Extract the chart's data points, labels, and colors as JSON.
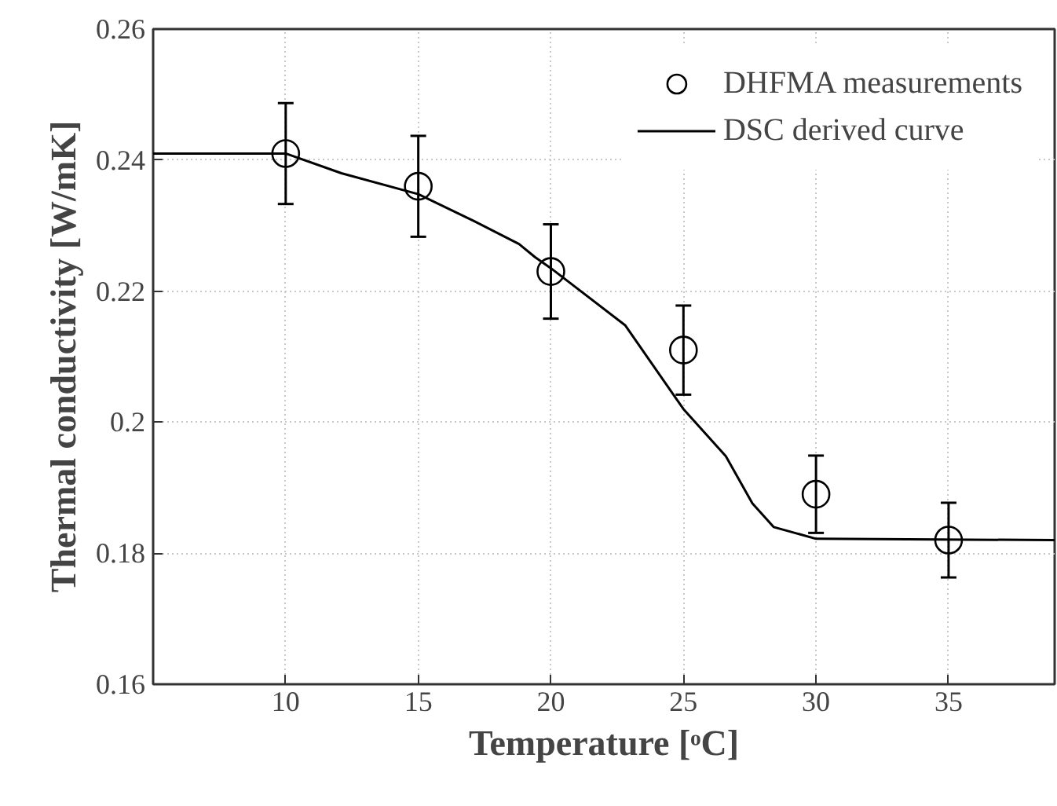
{
  "chart_data": {
    "type": "scatter",
    "xlabel": "Temperature [ᵒC]",
    "ylabel": "Thermal conductivity [W/mK]",
    "xlim": [
      5,
      39
    ],
    "ylim": [
      0.16,
      0.26
    ],
    "xticks": [
      10,
      15,
      20,
      25,
      30,
      35
    ],
    "yticks": [
      0.16,
      0.18,
      0.2,
      0.22,
      0.24,
      0.26
    ],
    "grid": true,
    "legend": "top right",
    "series": [
      {
        "name": "DHFMA measurements",
        "marker": "circle",
        "color": "#000000",
        "x": [
          10,
          15,
          20,
          25,
          30,
          35
        ],
        "values": [
          0.241,
          0.236,
          0.223,
          0.211,
          0.189,
          0.182
        ],
        "errors": [
          0.0077,
          0.0077,
          0.0072,
          0.0068,
          0.0059,
          0.0057
        ]
      },
      {
        "name": "DSC derived curve",
        "type": "line",
        "line_style": "solid",
        "color": "#000000",
        "x": [
          5,
          10,
          12.1,
          15,
          17.1,
          18.8,
          19.4,
          20,
          22.8,
          25,
          26.6,
          27.6,
          28.4,
          30,
          39
        ],
        "values": [
          0.241,
          0.241,
          0.238,
          0.2348,
          0.2307,
          0.2272,
          0.2252,
          0.2235,
          0.2148,
          0.202,
          0.1948,
          0.1876,
          0.184,
          0.1822,
          0.182
        ]
      }
    ]
  }
}
